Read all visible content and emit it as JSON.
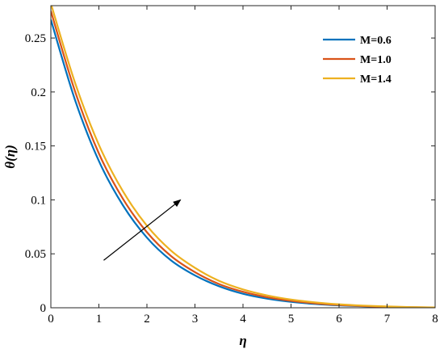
{
  "chart_data": {
    "type": "line",
    "xlabel": "η",
    "ylabel": "θ(η)",
    "xlim": [
      0,
      8
    ],
    "ylim": [
      0,
      0.28
    ],
    "xticks": [
      "0",
      "1",
      "2",
      "3",
      "4",
      "5",
      "6",
      "7",
      "8"
    ],
    "yticks": [
      "0",
      "0.05",
      "0.1",
      "0.15",
      "0.2",
      "0.25"
    ],
    "grid": false,
    "legend_position": "top-right",
    "x": [
      0,
      0.5,
      1,
      1.5,
      2,
      2.5,
      3,
      3.5,
      4,
      4.5,
      5,
      5.5,
      6,
      6.5,
      7,
      7.5,
      8
    ],
    "series": [
      {
        "name": "M=0.6",
        "color": "#0072BD",
        "values": [
          0.267,
          0.193,
          0.136,
          0.095,
          0.065,
          0.044,
          0.03,
          0.02,
          0.013,
          0.0085,
          0.0055,
          0.0035,
          0.0022,
          0.0014,
          0.0008,
          0.0004,
          0.0002
        ]
      },
      {
        "name": "M=1.0",
        "color": "#D95319",
        "values": [
          0.275,
          0.201,
          0.143,
          0.101,
          0.07,
          0.048,
          0.033,
          0.022,
          0.0148,
          0.0098,
          0.0064,
          0.0041,
          0.0026,
          0.0016,
          0.0009,
          0.0005,
          0.0002
        ]
      },
      {
        "name": "M=1.4",
        "color": "#EDB120",
        "values": [
          0.282,
          0.209,
          0.151,
          0.108,
          0.076,
          0.053,
          0.037,
          0.025,
          0.017,
          0.0115,
          0.0076,
          0.005,
          0.0032,
          0.002,
          0.0012,
          0.0006,
          0.0003
        ]
      }
    ],
    "annotations": [
      {
        "type": "arrow",
        "from": [
          1.1,
          0.044
        ],
        "to": [
          2.7,
          0.1
        ],
        "meaning": "increasing M"
      }
    ]
  }
}
